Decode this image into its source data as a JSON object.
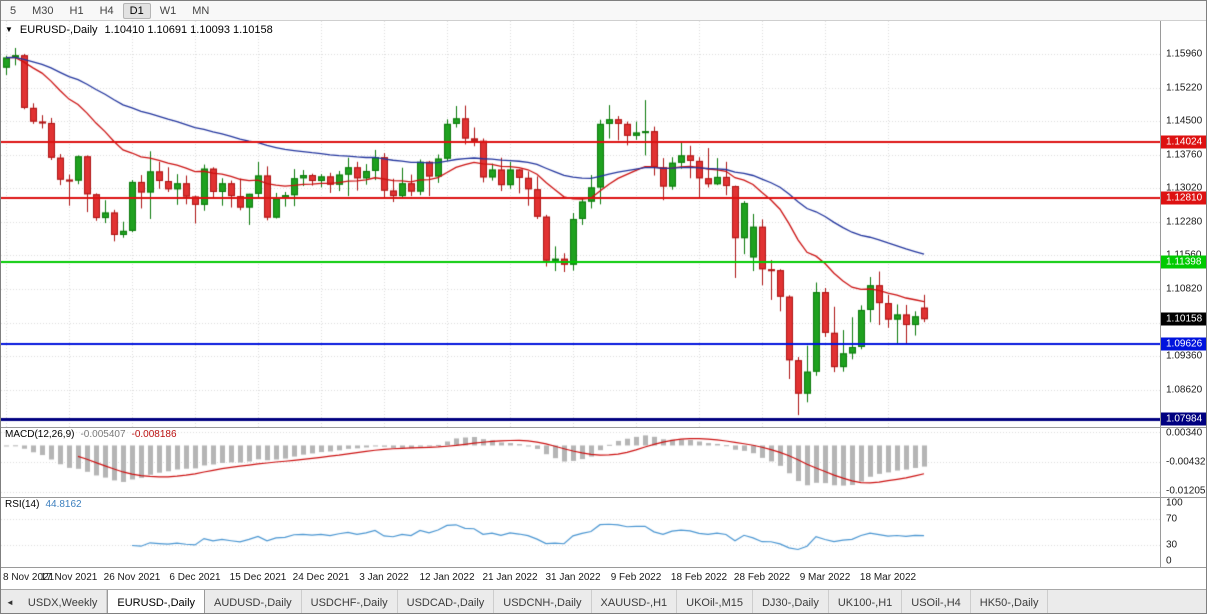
{
  "toolbar": {
    "timeframes": [
      "5",
      "M30",
      "H1",
      "H4",
      "D1",
      "W1",
      "MN"
    ],
    "active": "D1"
  },
  "chart_title": {
    "symbol": "EURUSD-,Daily",
    "oh lc_note": "",
    "ohlc": "1.10410 1.10691 1.10093 1.10158"
  },
  "price_axis": {
    "labels": [
      "1.15960",
      "1.15220",
      "1.14500",
      "1.13760",
      "1.13020",
      "1.12280",
      "1.11560",
      "1.10820",
      "1.10080",
      "1.09360",
      "1.08620"
    ]
  },
  "hlines": [
    {
      "label": "1.14024",
      "value": 1.14024,
      "color": "#dd1111",
      "width": 2
    },
    {
      "label": "1.12810",
      "value": 1.1281,
      "color": "#dd1111",
      "width": 2
    },
    {
      "label": "1.11398",
      "value": 1.11398,
      "color": "#00ca00",
      "width": 2
    },
    {
      "label": "1.09626",
      "value": 1.09626,
      "color": "#0013dd",
      "width": 2
    },
    {
      "label": "1.07984",
      "value": 1.07984,
      "color": "#000080",
      "width": 3
    }
  ],
  "current_price": {
    "label": "1.10158",
    "value": 1.10158,
    "color": "#000000"
  },
  "time_axis": [
    {
      "label": "8 Nov 2021",
      "index": 0
    },
    {
      "label": "17 Nov 2021",
      "index": 7
    },
    {
      "label": "26 Nov 2021",
      "index": 14
    },
    {
      "label": "6 Dec 2021",
      "index": 21
    },
    {
      "label": "15 Dec 2021",
      "index": 28
    },
    {
      "label": "24 Dec 2021",
      "index": 35
    },
    {
      "label": "3 Jan 2022",
      "index": 42
    },
    {
      "label": "12 Jan 2022",
      "index": 49
    },
    {
      "label": "21 Jan 2022",
      "index": 56
    },
    {
      "label": "31 Jan 2022",
      "index": 63
    },
    {
      "label": "9 Feb 2022",
      "index": 70
    },
    {
      "label": "18 Feb 2022",
      "index": 77
    },
    {
      "label": "28 Feb 2022",
      "index": 84
    },
    {
      "label": "9 Mar 2022",
      "index": 91
    },
    {
      "label": "18 Mar 2022",
      "index": 98
    }
  ],
  "chart_data": {
    "type": "candlestick",
    "symbol": "EURUSD-",
    "timeframe": "Daily",
    "moving_averages": [
      {
        "name": "fast-ma",
        "period": 20,
        "color": "#cc1111"
      },
      {
        "name": "slow-ma",
        "period": 50,
        "color": "#22359e"
      }
    ],
    "indicators": {
      "macd_params": [
        12,
        26,
        9
      ],
      "rsi_period": 14
    },
    "candles": [
      [
        1.1566,
        1.1592,
        1.155,
        1.1588
      ],
      [
        1.1588,
        1.1609,
        1.1571,
        1.1593
      ],
      [
        1.1593,
        1.1596,
        1.1475,
        1.1478
      ],
      [
        1.1478,
        1.1488,
        1.1443,
        1.1448
      ],
      [
        1.1448,
        1.1462,
        1.1433,
        1.1445
      ],
      [
        1.1445,
        1.1456,
        1.1364,
        1.1369
      ],
      [
        1.1369,
        1.1377,
        1.1309,
        1.1321
      ],
      [
        1.1321,
        1.1332,
        1.1264,
        1.1319
      ],
      [
        1.1319,
        1.1374,
        1.1311,
        1.1372
      ],
      [
        1.1372,
        1.1374,
        1.125,
        1.1289
      ],
      [
        1.1289,
        1.1291,
        1.1231,
        1.1237
      ],
      [
        1.1237,
        1.1276,
        1.1226,
        1.1249
      ],
      [
        1.1249,
        1.1255,
        1.1186,
        1.12
      ],
      [
        1.12,
        1.1229,
        1.1194,
        1.1209
      ],
      [
        1.1209,
        1.132,
        1.1206,
        1.1316
      ],
      [
        1.1316,
        1.1331,
        1.1258,
        1.1293
      ],
      [
        1.1293,
        1.1383,
        1.1235,
        1.1339
      ],
      [
        1.1339,
        1.136,
        1.1301,
        1.1318
      ],
      [
        1.1318,
        1.1348,
        1.1294,
        1.13
      ],
      [
        1.13,
        1.1333,
        1.1266,
        1.1313
      ],
      [
        1.1313,
        1.133,
        1.1267,
        1.1284
      ],
      [
        1.1284,
        1.1286,
        1.1225,
        1.1266
      ],
      [
        1.1266,
        1.1354,
        1.1253,
        1.1345
      ],
      [
        1.1345,
        1.1348,
        1.128,
        1.1294
      ],
      [
        1.1294,
        1.1324,
        1.1264,
        1.1313
      ],
      [
        1.1313,
        1.1319,
        1.126,
        1.1285
      ],
      [
        1.1285,
        1.1323,
        1.1254,
        1.126
      ],
      [
        1.126,
        1.129,
        1.1222,
        1.129
      ],
      [
        1.129,
        1.136,
        1.1282,
        1.133
      ],
      [
        1.133,
        1.135,
        1.1232,
        1.1238
      ],
      [
        1.1238,
        1.1292,
        1.1236,
        1.128
      ],
      [
        1.128,
        1.1294,
        1.1262,
        1.1287
      ],
      [
        1.1287,
        1.1344,
        1.1263,
        1.1324
      ],
      [
        1.1324,
        1.1342,
        1.1307,
        1.1331
      ],
      [
        1.1331,
        1.1334,
        1.1308,
        1.1318
      ],
      [
        1.1318,
        1.1333,
        1.1304,
        1.1328
      ],
      [
        1.1328,
        1.1336,
        1.1292,
        1.131
      ],
      [
        1.131,
        1.134,
        1.1296,
        1.1332
      ],
      [
        1.1332,
        1.1369,
        1.1285,
        1.1348
      ],
      [
        1.1348,
        1.136,
        1.1297,
        1.1324
      ],
      [
        1.1324,
        1.1355,
        1.131,
        1.134
      ],
      [
        1.134,
        1.1386,
        1.132,
        1.137
      ],
      [
        1.137,
        1.1379,
        1.1279,
        1.1297
      ],
      [
        1.1297,
        1.1323,
        1.1272,
        1.1285
      ],
      [
        1.1285,
        1.1347,
        1.1279,
        1.1313
      ],
      [
        1.1313,
        1.1332,
        1.1285,
        1.1295
      ],
      [
        1.1295,
        1.1365,
        1.1287,
        1.136
      ],
      [
        1.136,
        1.1362,
        1.1285,
        1.1328
      ],
      [
        1.1328,
        1.1376,
        1.1314,
        1.1367
      ],
      [
        1.1367,
        1.1453,
        1.1362,
        1.1443
      ],
      [
        1.1443,
        1.1482,
        1.1435,
        1.1455
      ],
      [
        1.1455,
        1.1483,
        1.1398,
        1.1411
      ],
      [
        1.1411,
        1.1435,
        1.1394,
        1.1406
      ],
      [
        1.1406,
        1.1411,
        1.1315,
        1.1326
      ],
      [
        1.1326,
        1.1356,
        1.1319,
        1.1343
      ],
      [
        1.1343,
        1.1369,
        1.1296,
        1.1309
      ],
      [
        1.1309,
        1.136,
        1.1301,
        1.1343
      ],
      [
        1.1343,
        1.1344,
        1.1291,
        1.1325
      ],
      [
        1.1325,
        1.1339,
        1.1264,
        1.13
      ],
      [
        1.13,
        1.1328,
        1.1235,
        1.124
      ],
      [
        1.124,
        1.1244,
        1.1131,
        1.1144
      ],
      [
        1.1144,
        1.1175,
        1.1121,
        1.1148
      ],
      [
        1.1148,
        1.116,
        1.1119,
        1.1135
      ],
      [
        1.1135,
        1.1248,
        1.1122,
        1.1235
      ],
      [
        1.1235,
        1.1279,
        1.1222,
        1.1273
      ],
      [
        1.1273,
        1.1331,
        1.1258,
        1.1304
      ],
      [
        1.1304,
        1.1452,
        1.1267,
        1.1443
      ],
      [
        1.1443,
        1.1484,
        1.1411,
        1.1453
      ],
      [
        1.1453,
        1.146,
        1.1407,
        1.1443
      ],
      [
        1.1443,
        1.1448,
        1.1396,
        1.1417
      ],
      [
        1.1417,
        1.1448,
        1.1408,
        1.1424
      ],
      [
        1.1424,
        1.1495,
        1.1374,
        1.1427
      ],
      [
        1.1427,
        1.1437,
        1.133,
        1.1348
      ],
      [
        1.1348,
        1.1368,
        1.1276,
        1.1306
      ],
      [
        1.1306,
        1.137,
        1.1299,
        1.1358
      ],
      [
        1.1358,
        1.1405,
        1.1345,
        1.1374
      ],
      [
        1.1374,
        1.1395,
        1.1324,
        1.1362
      ],
      [
        1.1362,
        1.137,
        1.1279,
        1.1324
      ],
      [
        1.1324,
        1.139,
        1.1304,
        1.1311
      ],
      [
        1.1311,
        1.1368,
        1.1309,
        1.1327
      ],
      [
        1.1327,
        1.136,
        1.1287,
        1.1307
      ],
      [
        1.1307,
        1.1308,
        1.1106,
        1.1193
      ],
      [
        1.1193,
        1.1274,
        1.1158,
        1.127
      ],
      [
        1.1151,
        1.1246,
        1.1121,
        1.1218
      ],
      [
        1.1218,
        1.1234,
        1.109,
        1.1125
      ],
      [
        1.1125,
        1.1145,
        1.1058,
        1.1123
      ],
      [
        1.1123,
        1.1125,
        1.1033,
        1.1065
      ],
      [
        1.1065,
        1.1068,
        1.0885,
        1.0926
      ],
      [
        1.0926,
        1.0933,
        1.0806,
        1.0853
      ],
      [
        1.0853,
        1.0958,
        1.0834,
        1.0901
      ],
      [
        1.0901,
        1.1096,
        1.0892,
        1.1075
      ],
      [
        1.1075,
        1.1084,
        1.0977,
        1.0986
      ],
      [
        1.0986,
        1.1043,
        1.09,
        1.0911
      ],
      [
        1.0911,
        1.0992,
        1.0901,
        1.0941
      ],
      [
        1.0941,
        1.102,
        1.0928,
        1.0955
      ],
      [
        1.0955,
        1.1046,
        1.095,
        1.1036
      ],
      [
        1.1036,
        1.1108,
        1.1009,
        1.109
      ],
      [
        1.109,
        1.112,
        1.1003,
        1.1051
      ],
      [
        1.1051,
        1.1069,
        1.0997,
        1.1015
      ],
      [
        1.1015,
        1.1048,
        1.0963,
        1.1026
      ],
      [
        1.1026,
        1.1047,
        1.0962,
        1.1003
      ],
      [
        1.1003,
        1.1033,
        1.098,
        1.1022
      ],
      [
        1.1041,
        1.10691,
        1.10093,
        1.10158
      ]
    ]
  },
  "macd": {
    "label": "MACD(12,26,9)",
    "value_main": "-0.005407",
    "value_signal": "-0.008186",
    "axis_labels": [
      {
        "label": "0.00340",
        "value": 0.0034
      },
      {
        "label": "-0.00432",
        "value": -0.00432
      },
      {
        "label": "-0.01205",
        "value": -0.01205
      }
    ],
    "colors": {
      "histogram": "#b5b5b5",
      "signal": "#cc1111"
    }
  },
  "rsi": {
    "label": "RSI(14)",
    "value": "44.8162",
    "color": "#4a96d2",
    "levels": [
      70,
      30
    ],
    "axis_labels": [
      {
        "label": "100",
        "value": 100
      },
      {
        "label": "70",
        "value": 70
      },
      {
        "label": "30",
        "value": 30
      },
      {
        "label": "0",
        "value": 0
      }
    ]
  },
  "tabs": {
    "items": [
      "USDX,Weekly",
      "EURUSD-,Daily",
      "AUDUSD-,Daily",
      "USDCHF-,Daily",
      "USDCAD-,Daily",
      "USDCNH-,Daily",
      "XAUUSD-,H1",
      "UKOil-,M15",
      "DJ30-,Daily",
      "UK100-,H1",
      "USOil-,H4",
      "HK50-,Daily"
    ],
    "active": "EURUSD-,Daily"
  },
  "colors": {
    "grid": "#dcdcdc",
    "up_fill": "#1fa11f",
    "up_stroke": "#0b7a0b",
    "down_fill": "#e13232",
    "down_stroke": "#ad1414",
    "separator": "#9a9a9a"
  }
}
